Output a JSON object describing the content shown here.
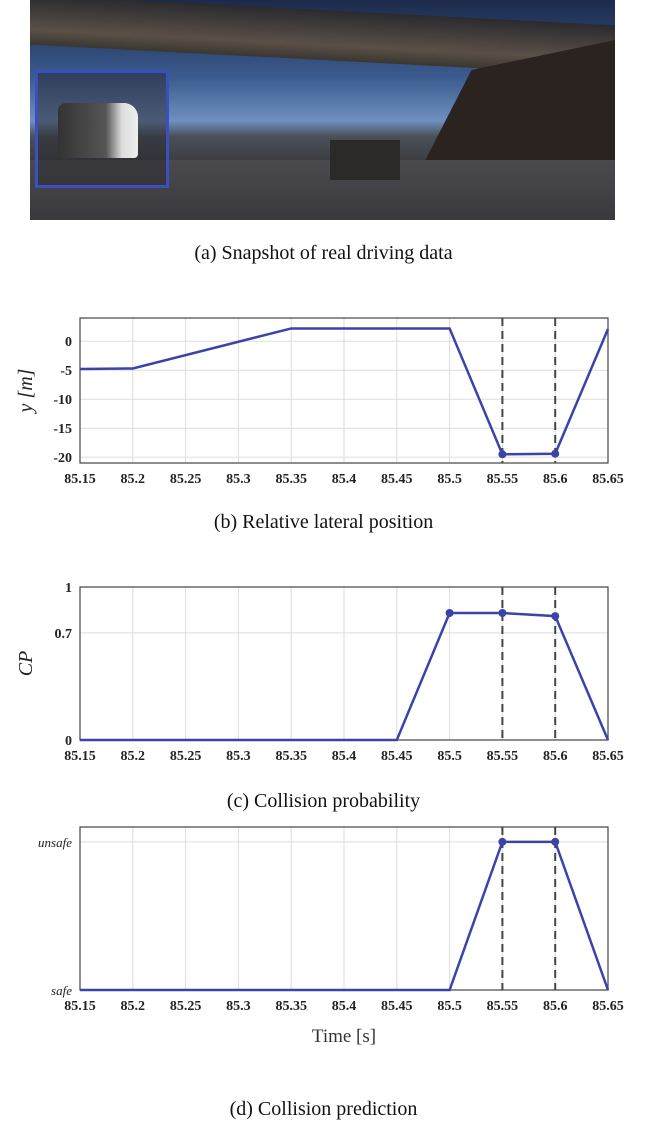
{
  "captions": {
    "a": "(a) Snapshot of real driving data",
    "b": "(b) Relative lateral position",
    "c": "(c) Collision probability",
    "d": "(d) Collision prediction"
  },
  "colors": {
    "line": "#3a44a8",
    "dashed": "#444444",
    "grid": "#dddddd",
    "box": "#3a4fc0"
  },
  "chart_data": [
    {
      "id": "b",
      "type": "line",
      "ylabel": "y [m]",
      "xlabel": "",
      "x": [
        85.15,
        85.2,
        85.35,
        85.5,
        85.55,
        85.6,
        85.65
      ],
      "values": [
        -4.8,
        -4.7,
        2.2,
        2.2,
        -19.5,
        -19.4,
        2.1
      ],
      "markers_at": [
        85.55,
        85.6
      ],
      "dashed_vlines": [
        85.55,
        85.6
      ],
      "xlim": [
        85.15,
        85.65
      ],
      "ylim": [
        -21,
        4
      ],
      "xticks": [
        "85.15",
        "85.2",
        "85.25",
        "85.3",
        "85.35",
        "85.4",
        "85.45",
        "85.5",
        "85.55",
        "85.6",
        "85.65"
      ],
      "yticks": [
        {
          "v": 0,
          "label": "0"
        },
        {
          "v": -5,
          "label": "-5"
        },
        {
          "v": -10,
          "label": "-10"
        },
        {
          "v": -15,
          "label": "-15"
        },
        {
          "v": -20,
          "label": "-20"
        }
      ],
      "grid": true
    },
    {
      "id": "c",
      "type": "line",
      "ylabel": "CP",
      "xlabel": "",
      "x": [
        85.15,
        85.45,
        85.5,
        85.55,
        85.6,
        85.65
      ],
      "values": [
        0,
        0,
        0.83,
        0.83,
        0.81,
        0
      ],
      "markers_at": [
        85.5,
        85.55,
        85.6
      ],
      "dashed_vlines": [
        85.55,
        85.6
      ],
      "xlim": [
        85.15,
        85.65
      ],
      "ylim": [
        0,
        1
      ],
      "xticks": [
        "85.15",
        "85.2",
        "85.25",
        "85.3",
        "85.35",
        "85.4",
        "85.45",
        "85.5",
        "85.55",
        "85.6",
        "85.65"
      ],
      "yticks": [
        {
          "v": 0,
          "label": "0"
        },
        {
          "v": 0.7,
          "label": "0.7"
        },
        {
          "v": 1,
          "label": "1"
        }
      ],
      "grid": true
    },
    {
      "id": "d",
      "type": "line",
      "ylabel": "",
      "xlabel": "Time [s]",
      "x": [
        85.15,
        85.5,
        85.55,
        85.6,
        85.65
      ],
      "values": [
        0,
        0,
        1,
        1,
        0
      ],
      "markers_at": [
        85.55,
        85.6
      ],
      "dashed_vlines": [
        85.55,
        85.6
      ],
      "xlim": [
        85.15,
        85.65
      ],
      "ylim": [
        0,
        1.1
      ],
      "xticks": [
        "85.15",
        "85.2",
        "85.25",
        "85.3",
        "85.35",
        "85.4",
        "85.45",
        "85.5",
        "85.55",
        "85.6",
        "85.65"
      ],
      "yticks": [
        {
          "v": 0,
          "label": "safe"
        },
        {
          "v": 1,
          "label": "unsafe"
        }
      ],
      "grid": true
    }
  ]
}
